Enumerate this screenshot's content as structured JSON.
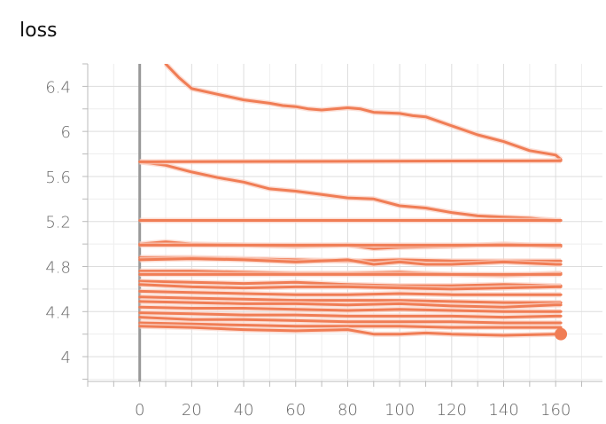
{
  "chart_data": {
    "type": "line",
    "title": "loss",
    "xlabel": "",
    "ylabel": "",
    "xlim": [
      -20,
      178
    ],
    "ylim": [
      3.78,
      6.6
    ],
    "x_ticks": [
      0,
      20,
      40,
      60,
      80,
      100,
      120,
      140,
      160
    ],
    "x_tick_labels": [
      "0",
      "20",
      "40",
      "60",
      "80",
      "100",
      "120",
      "140",
      "160"
    ],
    "y_ticks": [
      4.0,
      4.4,
      4.8,
      5.2,
      5.6,
      6.0,
      6.4
    ],
    "y_tick_labels": [
      "4",
      "4.4",
      "4.8",
      "5.2",
      "5.6",
      "6",
      "6.4"
    ],
    "grid": true,
    "color": "#f07d55",
    "smoothed_halo_color": "#fbd2c4",
    "axis_line_color": "#999999",
    "last_point": {
      "x": 162,
      "y": 4.2
    },
    "series": [
      {
        "x": [
          10,
          15,
          20,
          30,
          40,
          50,
          55,
          60,
          65,
          70,
          80,
          85,
          90,
          100,
          105,
          110,
          120,
          130,
          140,
          150,
          160,
          162
        ],
        "values": [
          6.6,
          6.48,
          6.38,
          6.33,
          6.28,
          6.25,
          6.23,
          6.22,
          6.2,
          6.19,
          6.21,
          6.2,
          6.17,
          6.16,
          6.14,
          6.13,
          6.05,
          5.97,
          5.91,
          5.83,
          5.79,
          5.75
        ]
      },
      {
        "x": [
          0,
          10,
          20,
          30,
          40,
          50,
          60,
          70,
          80,
          90,
          100,
          110,
          120,
          130,
          140,
          150,
          160,
          162
        ],
        "values": [
          5.73,
          5.7,
          5.64,
          5.59,
          5.55,
          5.49,
          5.47,
          5.44,
          5.41,
          5.4,
          5.34,
          5.32,
          5.28,
          5.25,
          5.24,
          5.23,
          5.21,
          5.21
        ]
      },
      {
        "x": [
          0,
          162
        ],
        "values": [
          5.73,
          5.74
        ]
      },
      {
        "x": [
          0,
          20,
          40,
          60,
          80,
          100,
          120,
          140,
          160,
          162
        ],
        "values": [
          5.21,
          5.21,
          5.21,
          5.21,
          5.21,
          5.21,
          5.21,
          5.21,
          5.21,
          5.21
        ]
      },
      {
        "x": [
          0,
          10,
          20,
          40,
          60,
          80,
          90,
          100,
          120,
          140,
          160,
          162
        ],
        "values": [
          5.0,
          5.02,
          5.0,
          4.99,
          4.98,
          4.99,
          4.96,
          4.97,
          4.98,
          5.0,
          4.98,
          4.98
        ]
      },
      {
        "x": [
          0,
          20,
          40,
          60,
          80,
          100,
          120,
          140,
          160,
          162
        ],
        "values": [
          4.99,
          4.99,
          4.99,
          4.99,
          4.99,
          4.99,
          4.99,
          4.99,
          4.99,
          4.99
        ]
      },
      {
        "x": [
          0,
          20,
          40,
          60,
          80,
          100,
          120,
          140,
          160,
          162
        ],
        "values": [
          4.88,
          4.88,
          4.87,
          4.86,
          4.85,
          4.86,
          4.85,
          4.85,
          4.85,
          4.85
        ]
      },
      {
        "x": [
          0,
          20,
          40,
          60,
          80,
          90,
          100,
          110,
          120,
          130,
          140,
          160,
          162
        ],
        "values": [
          4.86,
          4.87,
          4.86,
          4.84,
          4.86,
          4.82,
          4.84,
          4.82,
          4.82,
          4.83,
          4.84,
          4.82,
          4.82
        ]
      },
      {
        "x": [
          0,
          20,
          40,
          60,
          80,
          100,
          120,
          140,
          160,
          162
        ],
        "values": [
          4.76,
          4.76,
          4.75,
          4.74,
          4.74,
          4.75,
          4.73,
          4.72,
          4.74,
          4.74
        ]
      },
      {
        "x": [
          0,
          162
        ],
        "values": [
          4.73,
          4.73
        ]
      },
      {
        "x": [
          0,
          20,
          40,
          60,
          80,
          100,
          120,
          140,
          160,
          162
        ],
        "values": [
          4.67,
          4.66,
          4.65,
          4.66,
          4.64,
          4.63,
          4.63,
          4.64,
          4.63,
          4.63
        ]
      },
      {
        "x": [
          0,
          20,
          40,
          60,
          80,
          100,
          120,
          140,
          160,
          162
        ],
        "values": [
          4.64,
          4.62,
          4.61,
          4.62,
          4.62,
          4.61,
          4.6,
          4.61,
          4.62,
          4.62
        ]
      },
      {
        "x": [
          0,
          20,
          40,
          60,
          80,
          100,
          120,
          140,
          160,
          162
        ],
        "values": [
          4.58,
          4.57,
          4.56,
          4.55,
          4.55,
          4.56,
          4.55,
          4.55,
          4.55,
          4.55
        ]
      },
      {
        "x": [
          0,
          20,
          40,
          60,
          80,
          100,
          120,
          140,
          160,
          162
        ],
        "values": [
          4.53,
          4.52,
          4.51,
          4.5,
          4.5,
          4.5,
          4.49,
          4.48,
          4.48,
          4.48
        ]
      },
      {
        "x": [
          0,
          20,
          40,
          60,
          80,
          100,
          120,
          140,
          160,
          162
        ],
        "values": [
          4.49,
          4.48,
          4.47,
          4.47,
          4.46,
          4.47,
          4.45,
          4.44,
          4.46,
          4.46
        ]
      },
      {
        "x": [
          0,
          20,
          40,
          60,
          80,
          100,
          120,
          140,
          160,
          162
        ],
        "values": [
          4.44,
          4.43,
          4.43,
          4.42,
          4.41,
          4.42,
          4.41,
          4.4,
          4.4,
          4.4
        ]
      },
      {
        "x": [
          0,
          20,
          40,
          60,
          80,
          100,
          120,
          140,
          160,
          162
        ],
        "values": [
          4.39,
          4.38,
          4.37,
          4.37,
          4.36,
          4.36,
          4.36,
          4.35,
          4.36,
          4.36
        ]
      },
      {
        "x": [
          0,
          20,
          40,
          60,
          80,
          100,
          120,
          140,
          160,
          162
        ],
        "values": [
          4.35,
          4.33,
          4.33,
          4.32,
          4.31,
          4.31,
          4.31,
          4.3,
          4.3,
          4.3
        ]
      },
      {
        "x": [
          0,
          20,
          40,
          60,
          80,
          100,
          120,
          140,
          160,
          162
        ],
        "values": [
          4.3,
          4.29,
          4.28,
          4.27,
          4.27,
          4.27,
          4.26,
          4.26,
          4.26,
          4.26
        ]
      },
      {
        "x": [
          0,
          20,
          40,
          60,
          80,
          90,
          100,
          110,
          120,
          140,
          160,
          162
        ],
        "values": [
          4.27,
          4.26,
          4.24,
          4.23,
          4.24,
          4.2,
          4.2,
          4.21,
          4.2,
          4.19,
          4.2,
          4.2
        ]
      }
    ]
  }
}
